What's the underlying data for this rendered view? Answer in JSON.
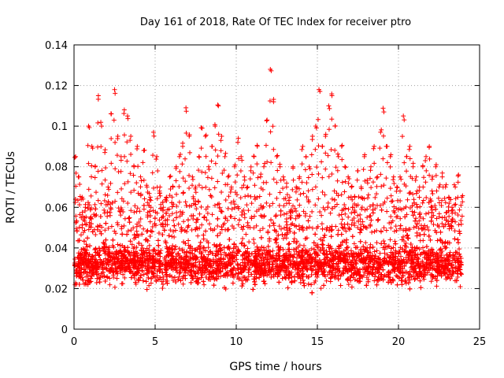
{
  "chart_data": {
    "type": "scatter",
    "title": "Day 161 of 2018, Rate Of TEC Index for receiver ptro",
    "xlabel": "GPS time / hours",
    "ylabel": "ROTI / TECUs",
    "xlim": [
      0,
      25
    ],
    "ylim": [
      0,
      0.14
    ],
    "xticks": [
      0,
      5,
      10,
      15,
      20,
      25
    ],
    "xtick_labels": [
      "0",
      "5",
      "10",
      "15",
      "20",
      "25"
    ],
    "yticks": [
      0,
      0.02,
      0.04,
      0.06,
      0.08,
      0.1,
      0.12,
      0.14
    ],
    "ytick_labels": [
      "0",
      "0.02",
      "0.04",
      "0.06",
      "0.08",
      "0.1",
      "0.12",
      "0.14"
    ],
    "grid": true,
    "marker": "+",
    "color": "#ff0000",
    "series": [
      {
        "name": "ROTI",
        "x": [
          0.1,
          0.3,
          0.5,
          0.7,
          0.9,
          1.1,
          1.3,
          1.5,
          1.7,
          1.9,
          2.1,
          2.3,
          2.5,
          2.7,
          2.9,
          3.1,
          3.3,
          3.5,
          3.7,
          3.9,
          4.1,
          4.3,
          4.5,
          4.7,
          4.9,
          5.1,
          5.3,
          5.5,
          5.7,
          5.9,
          6.1,
          6.3,
          6.5,
          6.7,
          6.9,
          7.1,
          7.3,
          7.5,
          7.7,
          7.9,
          8.1,
          8.3,
          8.5,
          8.7,
          8.9,
          9.1,
          9.3,
          9.5,
          9.7,
          9.9,
          10.1,
          10.3,
          10.5,
          10.7,
          10.9,
          11.1,
          11.3,
          11.5,
          11.7,
          11.9,
          12.1,
          12.3,
          12.5,
          12.7,
          12.9,
          13.1,
          13.3,
          13.5,
          13.7,
          13.9,
          14.1,
          14.3,
          14.5,
          14.7,
          14.9,
          15.1,
          15.3,
          15.5,
          15.7,
          15.9,
          16.1,
          16.3,
          16.5,
          16.7,
          16.9,
          17.1,
          17.3,
          17.5,
          17.7,
          17.9,
          18.1,
          18.3,
          18.5,
          18.7,
          18.9,
          19.1,
          19.3,
          19.5,
          19.7,
          19.9,
          20.1,
          20.3,
          20.5,
          20.7,
          20.9,
          21.1,
          21.3,
          21.5,
          21.7,
          21.9,
          22.1,
          22.3,
          22.5,
          22.7,
          22.9,
          23.1,
          23.3,
          23.5,
          23.7,
          23.9
        ],
        "y": [
          0.085,
          0.075,
          0.065,
          0.06,
          0.1,
          0.09,
          0.08,
          0.115,
          0.1,
          0.087,
          0.07,
          0.106,
          0.118,
          0.095,
          0.085,
          0.108,
          0.105,
          0.095,
          0.08,
          0.09,
          0.075,
          0.088,
          0.07,
          0.065,
          0.097,
          0.085,
          0.07,
          0.06,
          0.065,
          0.075,
          0.07,
          0.08,
          0.085,
          0.09,
          0.109,
          0.095,
          0.075,
          0.07,
          0.085,
          0.099,
          0.095,
          0.08,
          0.09,
          0.1,
          0.11,
          0.095,
          0.085,
          0.075,
          0.07,
          0.08,
          0.092,
          0.085,
          0.075,
          0.07,
          0.078,
          0.085,
          0.09,
          0.075,
          0.08,
          0.103,
          0.128,
          0.112,
          0.085,
          0.08,
          0.075,
          0.07,
          0.065,
          0.08,
          0.07,
          0.075,
          0.09,
          0.085,
          0.08,
          0.095,
          0.1,
          0.118,
          0.09,
          0.095,
          0.11,
          0.115,
          0.1,
          0.085,
          0.09,
          0.08,
          0.075,
          0.07,
          0.065,
          0.078,
          0.07,
          0.085,
          0.072,
          0.08,
          0.09,
          0.075,
          0.097,
          0.107,
          0.09,
          0.085,
          0.075,
          0.07,
          0.075,
          0.105,
          0.085,
          0.09,
          0.08,
          0.075,
          0.07,
          0.08,
          0.085,
          0.09,
          0.075,
          0.08,
          0.07,
          0.075,
          0.07,
          0.065,
          0.06,
          0.07,
          0.076,
          0.065
        ]
      }
    ],
    "bulk_band": {
      "description_visible": false,
      "lower": 0.01,
      "center": 0.032,
      "upper": 0.055
    }
  }
}
